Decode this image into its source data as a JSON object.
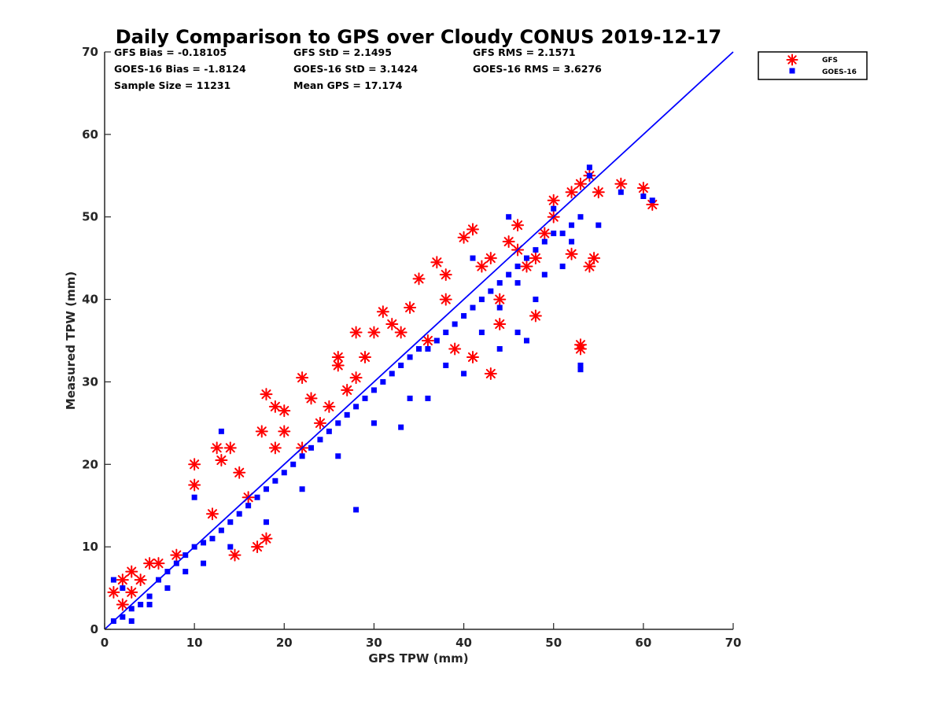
{
  "chart_data": {
    "type": "scatter",
    "title": "Daily Comparison to GPS over Cloudy CONUS 2019-12-17",
    "xlabel": "GPS TPW (mm)",
    "ylabel": "Measured TPW (mm)",
    "xlim": [
      0,
      70
    ],
    "ylim": [
      0,
      70
    ],
    "xticks": [
      "0",
      "10",
      "20",
      "30",
      "40",
      "50",
      "60",
      "70"
    ],
    "yticks": [
      "0",
      "10",
      "20",
      "30",
      "40",
      "50",
      "60",
      "70"
    ],
    "grid": false,
    "legend_position": "outside-top-right",
    "stats": [
      [
        "GFS Bias = -0.18105",
        "GFS StD = 2.1495",
        "GFS RMS = 2.1571"
      ],
      [
        "GOES-16 Bias = -1.8124",
        "GOES-16 StD = 3.1424",
        "GOES-16 RMS = 3.6276"
      ],
      [
        "Sample Size = 11231",
        "Mean GPS = 17.174",
        ""
      ]
    ],
    "reference_line": {
      "name": "1:1 line",
      "x": [
        0,
        70
      ],
      "y": [
        0,
        70
      ],
      "color": "#0000ff"
    },
    "series": [
      {
        "name": "GFS",
        "marker": "asterisk",
        "color": "#ff0000",
        "points": [
          [
            1,
            4.5
          ],
          [
            2,
            6
          ],
          [
            3,
            7
          ],
          [
            5,
            8
          ],
          [
            10,
            20
          ],
          [
            10,
            17.5
          ],
          [
            12.5,
            22
          ],
          [
            13,
            20.5
          ],
          [
            14,
            22
          ],
          [
            15,
            19
          ],
          [
            14.5,
            9
          ],
          [
            17,
            10
          ],
          [
            18,
            11
          ],
          [
            18,
            28.5
          ],
          [
            17.5,
            24
          ],
          [
            19,
            27
          ],
          [
            20,
            26.5
          ],
          [
            22,
            30.5
          ],
          [
            25,
            27
          ],
          [
            26,
            33
          ],
          [
            26,
            32
          ],
          [
            28,
            36
          ],
          [
            28,
            30.5
          ],
          [
            31,
            38.5
          ],
          [
            32,
            37
          ],
          [
            35,
            42.5
          ],
          [
            37,
            44.5
          ],
          [
            38,
            40
          ],
          [
            40,
            47.5
          ],
          [
            41,
            48.5
          ],
          [
            43,
            45
          ],
          [
            45,
            47
          ],
          [
            46,
            49
          ],
          [
            48,
            45
          ],
          [
            48,
            38
          ],
          [
            44,
            37
          ],
          [
            43,
            31
          ],
          [
            53,
            34
          ],
          [
            53,
            34.5
          ],
          [
            50,
            52
          ],
          [
            52,
            53
          ],
          [
            53,
            54
          ],
          [
            54,
            55
          ],
          [
            55,
            53
          ],
          [
            57.5,
            54
          ],
          [
            60,
            53.5
          ],
          [
            61,
            51.5
          ],
          [
            54,
            44
          ],
          [
            54.5,
            45
          ],
          [
            52,
            45.5
          ],
          [
            49,
            48
          ],
          [
            47,
            44
          ],
          [
            36,
            35
          ],
          [
            34,
            39
          ],
          [
            30,
            36
          ],
          [
            27,
            29
          ],
          [
            24,
            25
          ],
          [
            22,
            22
          ],
          [
            20,
            24
          ],
          [
            16,
            16
          ],
          [
            8,
            9
          ],
          [
            6,
            8
          ],
          [
            4,
            6
          ],
          [
            2,
            3
          ],
          [
            3,
            4.5
          ],
          [
            12,
            14
          ],
          [
            19,
            22
          ],
          [
            23,
            28
          ],
          [
            29,
            33
          ],
          [
            33,
            36
          ],
          [
            38,
            43
          ],
          [
            42,
            44
          ],
          [
            46,
            46
          ],
          [
            50,
            50
          ],
          [
            41,
            33
          ],
          [
            44,
            40
          ],
          [
            39,
            34
          ]
        ]
      },
      {
        "name": "GOES-16",
        "marker": "square",
        "color": "#0000ff",
        "points": [
          [
            1,
            1
          ],
          [
            2,
            1.5
          ],
          [
            3,
            2.5
          ],
          [
            4,
            3
          ],
          [
            5,
            4
          ],
          [
            6,
            6
          ],
          [
            7,
            7
          ],
          [
            8,
            8
          ],
          [
            9,
            9
          ],
          [
            10,
            10
          ],
          [
            11,
            10.5
          ],
          [
            12,
            11
          ],
          [
            13,
            12
          ],
          [
            14,
            13
          ],
          [
            15,
            14
          ],
          [
            16,
            15
          ],
          [
            17,
            16
          ],
          [
            18,
            17
          ],
          [
            19,
            18
          ],
          [
            20,
            19
          ],
          [
            21,
            20
          ],
          [
            22,
            21
          ],
          [
            23,
            22
          ],
          [
            24,
            23
          ],
          [
            25,
            24
          ],
          [
            26,
            25
          ],
          [
            27,
            26
          ],
          [
            28,
            27
          ],
          [
            29,
            28
          ],
          [
            30,
            29
          ],
          [
            31,
            30
          ],
          [
            32,
            31
          ],
          [
            33,
            32
          ],
          [
            34,
            33
          ],
          [
            35,
            34
          ],
          [
            36,
            34
          ],
          [
            37,
            35
          ],
          [
            38,
            36
          ],
          [
            39,
            37
          ],
          [
            40,
            38
          ],
          [
            41,
            39
          ],
          [
            42,
            40
          ],
          [
            43,
            41
          ],
          [
            44,
            42
          ],
          [
            45,
            43
          ],
          [
            46,
            44
          ],
          [
            47,
            45
          ],
          [
            48,
            46
          ],
          [
            49,
            47
          ],
          [
            50,
            48
          ],
          [
            51,
            48
          ],
          [
            52,
            49
          ],
          [
            53,
            50
          ],
          [
            54,
            55
          ],
          [
            54,
            56
          ],
          [
            55,
            49
          ],
          [
            48,
            40
          ],
          [
            46,
            36
          ],
          [
            28,
            14.5
          ],
          [
            33,
            24.5
          ],
          [
            13,
            24
          ],
          [
            10,
            16
          ],
          [
            36,
            28
          ],
          [
            40,
            31
          ],
          [
            44,
            34
          ],
          [
            47,
            35
          ],
          [
            53,
            32
          ],
          [
            53,
            31.5
          ],
          [
            60,
            52.5
          ],
          [
            61,
            52
          ],
          [
            57.5,
            53
          ],
          [
            41,
            45
          ],
          [
            45,
            50
          ],
          [
            50,
            51
          ],
          [
            3,
            1
          ],
          [
            5,
            3
          ],
          [
            7,
            5
          ],
          [
            9,
            7
          ],
          [
            11,
            8
          ],
          [
            14,
            10
          ],
          [
            18,
            13
          ],
          [
            22,
            17
          ],
          [
            26,
            21
          ],
          [
            30,
            25
          ],
          [
            34,
            28
          ],
          [
            38,
            32
          ],
          [
            42,
            36
          ],
          [
            44,
            39
          ],
          [
            46,
            42
          ],
          [
            49,
            43
          ],
          [
            51,
            44
          ],
          [
            52,
            47
          ],
          [
            1,
            6
          ],
          [
            2,
            5
          ]
        ]
      }
    ]
  }
}
